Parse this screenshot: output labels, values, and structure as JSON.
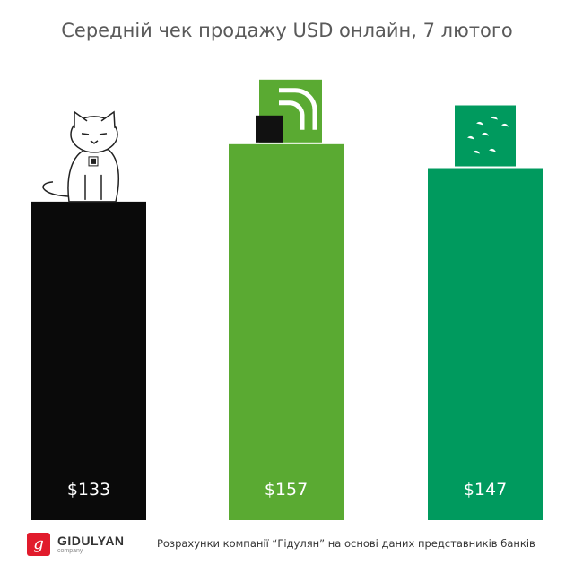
{
  "title": "Середній чек продажу USD онлайн, 7 лютого",
  "chart_data": {
    "type": "bar",
    "title": "Середній чек продажу USD онлайн, 7 лютого",
    "categories": [
      "",
      "",
      ""
    ],
    "values": [
      133,
      157,
      147
    ],
    "value_labels": [
      "$133",
      "$157",
      "$147"
    ],
    "colors": [
      "#0a0a0a",
      "#5aaa32",
      "#009a5e"
    ],
    "bar_icons": [
      "cat-mascot-icon",
      "privatbank-logo-icon",
      "ukrsibbank-logo-icon"
    ],
    "ylim": [
      0,
      175
    ],
    "grid": false,
    "legend": "none",
    "xlabel": "",
    "ylabel": ""
  },
  "footer": {
    "brand": "GIDULYAN",
    "brand_sub": "company",
    "brand_mark": "g",
    "source": "Розрахунки компанії “Гідулян” на основі даних представників банків"
  }
}
